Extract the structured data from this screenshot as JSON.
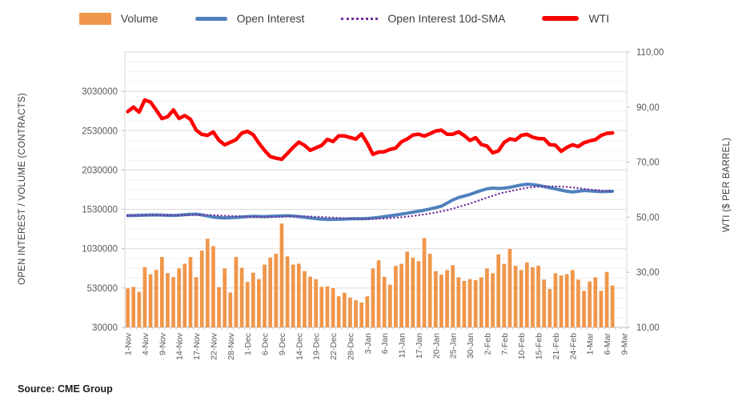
{
  "legend": {
    "items": [
      {
        "label": "Volume",
        "color": "#F0964A",
        "swatch": "bar"
      },
      {
        "label": "Open Interest",
        "color": "#4F81BD",
        "swatch": "line"
      },
      {
        "label": "Open Interest 10d-SMA",
        "color": "#7030A0",
        "swatch": "dotted"
      },
      {
        "label": "WTI",
        "color": "#FF0000",
        "swatch": "thick"
      }
    ]
  },
  "source_note": "Source: CME Group",
  "chart_data": {
    "type": "combo",
    "title": "",
    "left_axis": {
      "label": "OPEN INTEREST / VOLUME (CONTRACTS)",
      "min": 30000,
      "max": 3530000,
      "tick_step": 500000,
      "minor_step": 125000,
      "ticks": [
        30000,
        530000,
        1030000,
        1530000,
        2030000,
        2530000,
        3030000
      ]
    },
    "right_axis": {
      "label": "WTI ($ PER BARREL)",
      "min": 10,
      "max": 110,
      "tick_step": 20,
      "ticks": [
        "10,00",
        "30,00",
        "50,00",
        "70,00",
        "90,00",
        "110,00"
      ]
    },
    "x_label_every": 3,
    "trailing_empty_slots": [
      "8-Mar",
      "9-Mar"
    ],
    "categories": [
      "1-Nov",
      "2-Nov",
      "3-Nov",
      "4-Nov",
      "7-Nov",
      "8-Nov",
      "9-Nov",
      "10-Nov",
      "11-Nov",
      "14-Nov",
      "15-Nov",
      "16-Nov",
      "17-Nov",
      "18-Nov",
      "21-Nov",
      "22-Nov",
      "23-Nov",
      "25-Nov",
      "28-Nov",
      "29-Nov",
      "30-Nov",
      "1-Dec",
      "2-Dec",
      "5-Dec",
      "6-Dec",
      "7-Dec",
      "8-Dec",
      "9-Dec",
      "12-Dec",
      "13-Dec",
      "14-Dec",
      "15-Dec",
      "16-Dec",
      "19-Dec",
      "20-Dec",
      "21-Dec",
      "22-Dec",
      "23-Dec",
      "27-Dec",
      "28-Dec",
      "29-Dec",
      "30-Dec",
      "3-Jan",
      "4-Jan",
      "5-Jan",
      "6-Jan",
      "9-Jan",
      "10-Jan",
      "11-Jan",
      "12-Jan",
      "13-Jan",
      "17-Jan",
      "18-Jan",
      "19-Jan",
      "20-Jan",
      "23-Jan",
      "24-Jan",
      "25-Jan",
      "26-Jan",
      "27-Jan",
      "30-Jan",
      "31-Jan",
      "1-Feb",
      "2-Feb",
      "3-Feb",
      "6-Feb",
      "7-Feb",
      "8-Feb",
      "9-Feb",
      "10-Feb",
      "13-Feb",
      "14-Feb",
      "15-Feb",
      "16-Feb",
      "17-Feb",
      "21-Feb",
      "22-Feb",
      "23-Feb",
      "24-Feb",
      "27-Feb",
      "28-Feb",
      "1-Mar",
      "2-Mar",
      "3-Mar",
      "6-Mar",
      "7-Mar"
    ],
    "series": [
      {
        "name": "Volume",
        "type": "bar",
        "y_axis": "left",
        "color": "#F0964A",
        "values": [
          525000,
          545000,
          480000,
          795000,
          705000,
          760000,
          925000,
          720000,
          668000,
          780000,
          838000,
          925000,
          668000,
          1005000,
          1155000,
          1063000,
          542000,
          780000,
          473000,
          925000,
          787000,
          608000,
          725000,
          642000,
          828000,
          918000,
          967000,
          1350000,
          932000,
          828000,
          840000,
          745000,
          676000,
          642000,
          545000,
          552000,
          528000,
          425000,
          470000,
          408000,
          374000,
          346000,
          425000,
          779000,
          882000,
          673000,
          573000,
          813000,
          838000,
          993000,
          917000,
          872000,
          1164000,
          965000,
          745000,
          700000,
          759000,
          820000,
          666000,
          621000,
          642000,
          631000,
          666000,
          779000,
          718000,
          958000,
          838000,
          1027000,
          813000,
          759000,
          855000,
          793000,
          813000,
          638000,
          518000,
          718000,
          690000,
          707000,
          759000,
          638000,
          494000,
          614000,
          666000,
          494000,
          735000,
          562000
        ]
      },
      {
        "name": "Open Interest",
        "type": "line",
        "y_axis": "left",
        "color": "#4F81BD",
        "values": [
          1450000,
          1452000,
          1454000,
          1456000,
          1458000,
          1460000,
          1457000,
          1454000,
          1452000,
          1455000,
          1462000,
          1468000,
          1470000,
          1460000,
          1445000,
          1432000,
          1425000,
          1420000,
          1424000,
          1428000,
          1433000,
          1438000,
          1441000,
          1440000,
          1438000,
          1441000,
          1444000,
          1447000,
          1449000,
          1445000,
          1438000,
          1430000,
          1420000,
          1412000,
          1406000,
          1402000,
          1403000,
          1405000,
          1407000,
          1410000,
          1412000,
          1411000,
          1414000,
          1420000,
          1428000,
          1438000,
          1448000,
          1458000,
          1470000,
          1482000,
          1494000,
          1506000,
          1520000,
          1535000,
          1552000,
          1570000,
          1610000,
          1650000,
          1680000,
          1700000,
          1720000,
          1745000,
          1770000,
          1790000,
          1800000,
          1795000,
          1800000,
          1810000,
          1825000,
          1840000,
          1850000,
          1845000,
          1835000,
          1820000,
          1805000,
          1790000,
          1775000,
          1760000,
          1750000,
          1760000,
          1770000,
          1765000,
          1760000,
          1755000,
          1758000,
          1760000
        ]
      },
      {
        "name": "Open Interest 10d-SMA",
        "type": "line",
        "style": "dotted",
        "y_axis": "left",
        "color": "#7030A0",
        "values": [
          1450000,
          1451000,
          1452000,
          1453000,
          1454000,
          1455000,
          1455000,
          1455000,
          1455000,
          1455000,
          1456000,
          1458000,
          1459000,
          1460000,
          1458000,
          1456000,
          1452000,
          1449000,
          1446000,
          1443000,
          1441000,
          1438000,
          1435000,
          1433000,
          1432000,
          1433000,
          1435000,
          1437000,
          1440000,
          1442000,
          1442000,
          1441000,
          1439000,
          1436000,
          1433000,
          1429000,
          1425000,
          1421000,
          1417000,
          1413000,
          1411000,
          1409000,
          1408000,
          1409000,
          1411000,
          1415000,
          1419000,
          1425000,
          1431000,
          1438000,
          1446000,
          1456000,
          1466000,
          1478000,
          1490000,
          1504000,
          1520000,
          1539000,
          1560000,
          1582000,
          1604000,
          1628000,
          1653000,
          1679000,
          1704000,
          1726000,
          1745000,
          1761000,
          1776000,
          1790000,
          1803000,
          1813000,
          1819000,
          1822000,
          1823000,
          1822000,
          1820000,
          1815000,
          1807000,
          1799000,
          1791000,
          1783000,
          1776000,
          1769000,
          1764000,
          1761000
        ]
      },
      {
        "name": "WTI",
        "type": "line",
        "y_axis": "right",
        "color": "#FF0000",
        "values": [
          88.37,
          90.0,
          88.17,
          92.61,
          91.79,
          88.91,
          85.83,
          86.47,
          88.96,
          85.87,
          86.92,
          85.59,
          81.64,
          80.08,
          79.73,
          80.95,
          77.94,
          76.28,
          77.24,
          78.2,
          80.55,
          81.22,
          79.98,
          76.93,
          74.25,
          72.01,
          71.46,
          71.02,
          73.17,
          75.39,
          77.28,
          76.11,
          74.29,
          75.19,
          76.09,
          78.29,
          77.49,
          79.56,
          79.53,
          78.96,
          78.4,
          80.26,
          76.93,
          72.84,
          73.67,
          73.77,
          74.63,
          75.12,
          77.41,
          78.39,
          79.86,
          80.18,
          79.48,
          80.33,
          81.31,
          81.62,
          80.13,
          80.15,
          81.01,
          79.68,
          77.9,
          78.87,
          76.41,
          75.88,
          73.39,
          74.11,
          77.14,
          78.47,
          78.06,
          79.72,
          80.14,
          79.06,
          78.59,
          78.49,
          76.34,
          76.16,
          73.95,
          75.39,
          76.32,
          75.68,
          77.05,
          77.69,
          78.16,
          79.68,
          80.46,
          80.6
        ]
      }
    ],
    "grid": {
      "major": true,
      "minor": true
    },
    "legend_position": "top"
  },
  "colors": {
    "grid_major": "#D9D9D9",
    "grid_minor": "#F0F0F0",
    "axis_line": "#BFBFBF",
    "tick_text": "#595959"
  }
}
